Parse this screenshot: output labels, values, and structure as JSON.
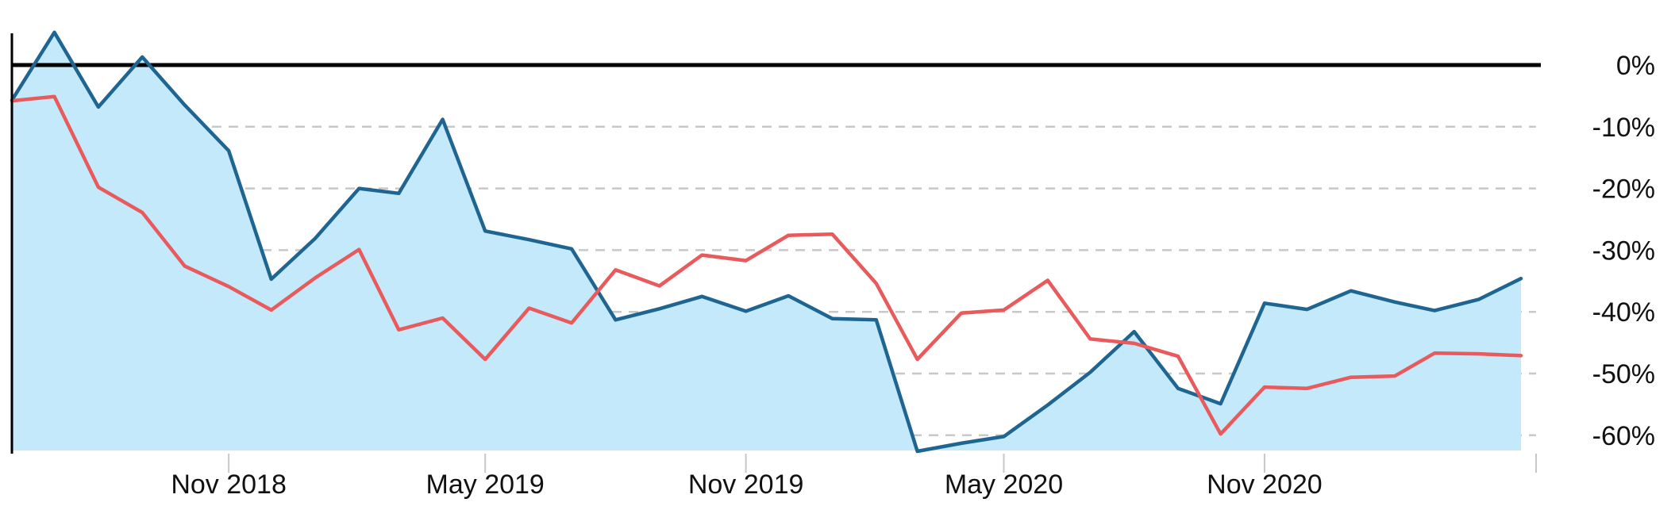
{
  "chart_data": {
    "type": "line",
    "title": "",
    "xlabel": "",
    "ylabel": "",
    "x": [
      "2018-06-01",
      "2018-07-01",
      "2018-08-01",
      "2018-09-01",
      "2018-10-01",
      "2018-11-01",
      "2018-12-01",
      "2019-01-01",
      "2019-02-01",
      "2019-03-01",
      "2019-04-01",
      "2019-05-01",
      "2019-06-01",
      "2019-07-01",
      "2019-08-01",
      "2019-09-01",
      "2019-10-01",
      "2019-11-01",
      "2019-12-01",
      "2020-01-01",
      "2020-02-01",
      "2020-03-01",
      "2020-04-01",
      "2020-05-01",
      "2020-06-01",
      "2020-07-01",
      "2020-08-01",
      "2020-09-01",
      "2020-10-01",
      "2020-11-01",
      "2020-12-01",
      "2021-01-01",
      "2021-02-01",
      "2021-03-01",
      "2021-04-01",
      "2021-05-01"
    ],
    "series": [
      {
        "color": "#1f6591",
        "fill": "#c3e9fa",
        "values": [
          -5.7,
          5.3,
          -6.8,
          1.3,
          -6.5,
          -13.9,
          -34.7,
          -28.1,
          -20.0,
          -20.8,
          -8.8,
          -26.9,
          -28.3,
          -29.8,
          -41.3,
          -39.5,
          -37.5,
          -39.9,
          -37.4,
          -41.1,
          -41.3,
          -62.6,
          -61.3,
          -60.2,
          -55.1,
          -49.8,
          -43.2,
          -52.4,
          -54.9,
          -38.6,
          -39.6,
          -36.6,
          -38.4,
          -39.8,
          -38.0,
          -34.6
        ]
      },
      {
        "color": "#e85a5c",
        "values": [
          -5.8,
          -5.1,
          -19.8,
          -23.9,
          -32.6,
          -35.9,
          -39.7,
          -34.5,
          -29.9,
          -42.9,
          -41.0,
          -47.7,
          -39.4,
          -41.8,
          -33.2,
          -35.8,
          -30.8,
          -31.7,
          -27.6,
          -27.4,
          -35.4,
          -47.7,
          -40.2,
          -39.7,
          -34.9,
          -44.4,
          -45.1,
          -47.2,
          -59.8,
          -52.2,
          -52.4,
          -50.6,
          -50.4,
          -46.7,
          -46.8,
          -47.1
        ]
      }
    ],
    "ylim": [
      -63,
      6
    ],
    "yticks": [
      0,
      -10,
      -20,
      -30,
      -40,
      -50,
      -60
    ],
    "ytick_labels": [
      "0%",
      "-10%",
      "-20%",
      "-30%",
      "-40%",
      "-50%",
      "-60%"
    ],
    "xticks": [
      "2018-11-01",
      "2019-05-01",
      "2019-11-01",
      "2020-05-01",
      "2020-11-01"
    ],
    "xtick_labels": [
      "Nov 2018",
      "May 2019",
      "Nov 2019",
      "May 2020",
      "Nov 2020"
    ],
    "grid": true,
    "zero_line": true
  }
}
